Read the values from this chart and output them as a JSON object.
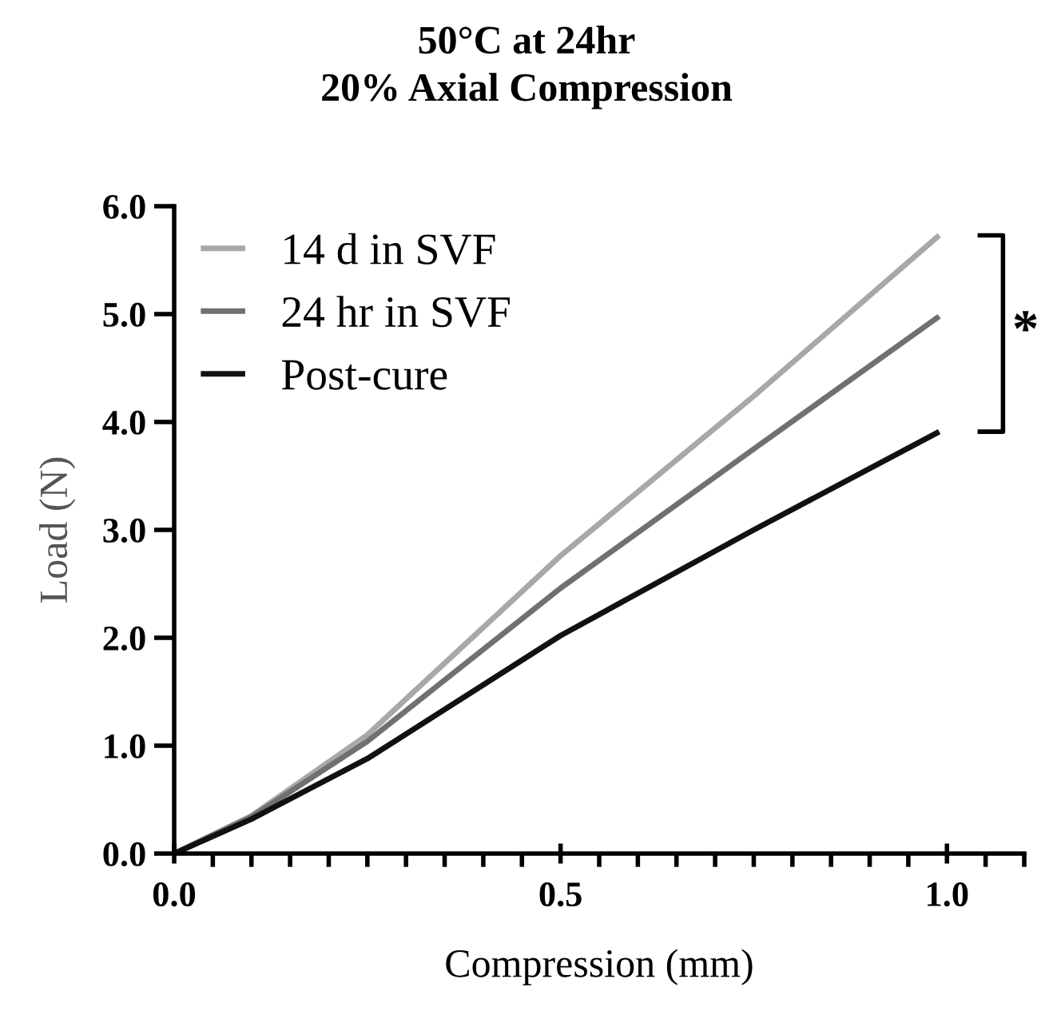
{
  "chart_data": {
    "type": "line",
    "title": "50°C at 24hr\n20% Axial Compression",
    "xlabel": "Compression (mm)",
    "ylabel": "Load (N)",
    "x": [
      0,
      0.1,
      0.25,
      0.5,
      0.75,
      0.99
    ],
    "series": [
      {
        "name": "14 d in SVF",
        "color": "#a8a8a8",
        "values": [
          0,
          0.35,
          1.1,
          2.76,
          4.24,
          5.73
        ]
      },
      {
        "name": "24 hr in SVF",
        "color": "#707070",
        "values": [
          0,
          0.34,
          1.04,
          2.46,
          3.75,
          4.98
        ]
      },
      {
        "name": "Post-cure",
        "color": "#111111",
        "values": [
          0,
          0.32,
          0.88,
          2.02,
          3.0,
          3.91
        ]
      }
    ],
    "xlim": [
      0,
      1.1
    ],
    "xticks": [
      {
        "value": 0,
        "label": "0.0"
      },
      0.5,
      {
        "value": 1,
        "label": "1.0"
      }
    ],
    "ylim": [
      0,
      6
    ],
    "yticks": [
      {
        "value": 0,
        "label": "0.0"
      },
      {
        "value": 1,
        "label": "1.0"
      },
      {
        "value": 2,
        "label": "2.0"
      },
      {
        "value": 3,
        "label": "3.0"
      },
      {
        "value": 4,
        "label": "4.0"
      },
      {
        "value": 5,
        "label": "5.0"
      },
      {
        "value": 6,
        "label": "6.0"
      }
    ],
    "annotations": [
      "*"
    ],
    "legend": "top left",
    "grid": false
  }
}
